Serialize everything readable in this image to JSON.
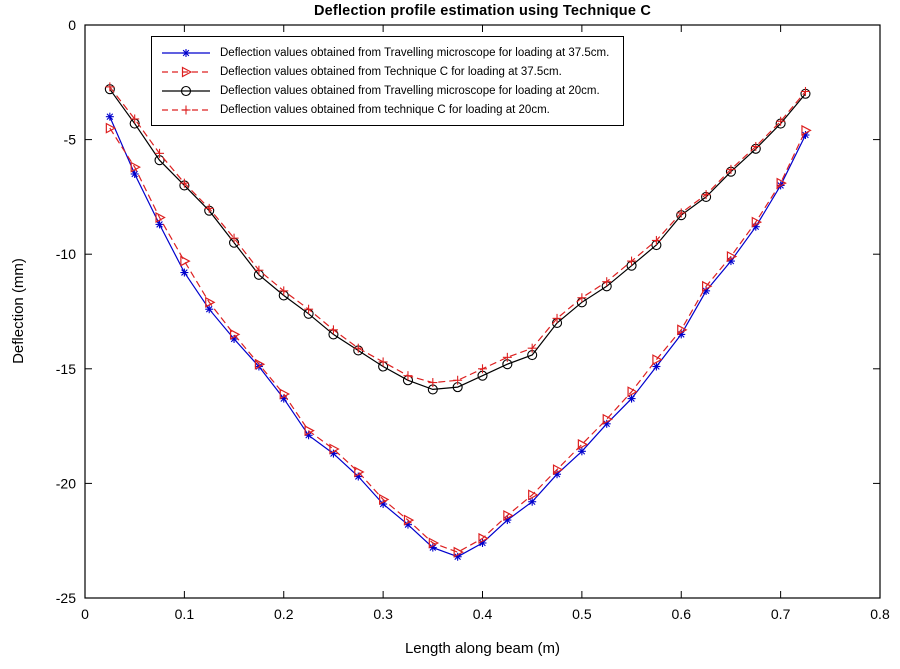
{
  "chart_data": {
    "type": "line",
    "title": "Deflection profile estimation using Technique C",
    "xlabel": "Length along beam (m)",
    "ylabel": "Deflection (mm)",
    "xlim": [
      0,
      0.8
    ],
    "ylim": [
      -25,
      0
    ],
    "xticks": [
      0,
      0.1,
      0.2,
      0.3,
      0.4,
      0.5,
      0.6,
      0.7,
      0.8
    ],
    "yticks": [
      0,
      -5,
      -10,
      -15,
      -20,
      -25
    ],
    "grid": false,
    "legend_position": "top-left-inside",
    "x": [
      0.025,
      0.05,
      0.075,
      0.1,
      0.125,
      0.15,
      0.175,
      0.2,
      0.225,
      0.25,
      0.275,
      0.3,
      0.325,
      0.35,
      0.375,
      0.4,
      0.425,
      0.45,
      0.475,
      0.5,
      0.525,
      0.55,
      0.575,
      0.6,
      0.625,
      0.65,
      0.675,
      0.7,
      0.725
    ],
    "series": [
      {
        "name": "Deflection values obtained from Travelling microscope for loading at 37.5cm.",
        "color": "#0000cd",
        "line": "solid",
        "marker": "asterisk",
        "values": [
          -4.0,
          -6.5,
          -8.7,
          -10.8,
          -12.4,
          -13.7,
          -14.9,
          -16.3,
          -17.9,
          -18.7,
          -19.7,
          -20.9,
          -21.8,
          -22.8,
          -23.2,
          -22.6,
          -21.6,
          -20.8,
          -19.6,
          -18.6,
          -17.4,
          -16.3,
          -14.9,
          -13.5,
          -11.6,
          -10.3,
          -8.8,
          -7.0,
          -4.8
        ]
      },
      {
        "name": "Deflection values obtained from Technique C for loading at 37.5cm.",
        "color": "#dd2020",
        "line": "dashed",
        "marker": "triangle-right",
        "values": [
          -4.5,
          -6.2,
          -8.4,
          -10.3,
          -12.1,
          -13.5,
          -14.8,
          -16.1,
          -17.7,
          -18.5,
          -19.5,
          -20.7,
          -21.6,
          -22.6,
          -23.0,
          -22.4,
          -21.4,
          -20.5,
          -19.4,
          -18.3,
          -17.2,
          -16.0,
          -14.6,
          -13.3,
          -11.4,
          -10.1,
          -8.6,
          -6.9,
          -4.6
        ]
      },
      {
        "name": "Deflection values obtained from Travelling microscope for loading at 20cm.",
        "color": "#000000",
        "line": "solid",
        "marker": "circle",
        "values": [
          -2.8,
          -4.3,
          -5.9,
          -7.0,
          -8.1,
          -9.5,
          -10.9,
          -11.8,
          -12.6,
          -13.5,
          -14.2,
          -14.9,
          -15.5,
          -15.9,
          -15.8,
          -15.3,
          -14.8,
          -14.4,
          -13.0,
          -12.1,
          -11.4,
          -10.5,
          -9.6,
          -8.3,
          -7.5,
          -6.4,
          -5.4,
          -4.3,
          -3.0
        ]
      },
      {
        "name": "Deflection values obtained from technique C for loading at 20cm.",
        "color": "#dd2020",
        "line": "dashed",
        "marker": "plus",
        "values": [
          -2.7,
          -4.1,
          -5.6,
          -6.9,
          -8.0,
          -9.3,
          -10.7,
          -11.6,
          -12.4,
          -13.3,
          -14.1,
          -14.7,
          -15.3,
          -15.6,
          -15.5,
          -15.0,
          -14.5,
          -14.1,
          -12.8,
          -11.9,
          -11.2,
          -10.3,
          -9.4,
          -8.2,
          -7.4,
          -6.3,
          -5.3,
          -4.2,
          -2.9
        ]
      }
    ]
  }
}
